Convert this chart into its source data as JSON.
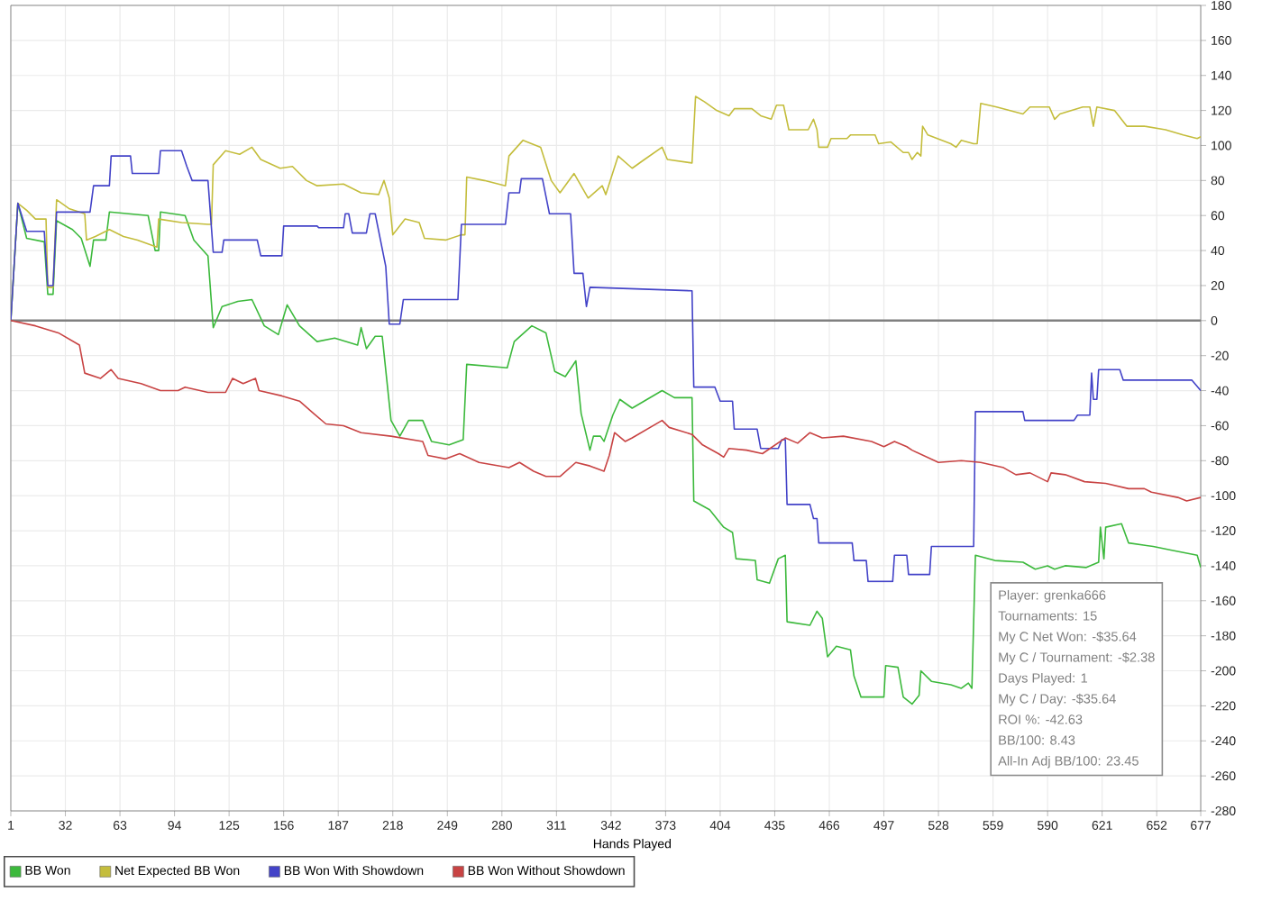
{
  "chart_data": {
    "type": "line",
    "xlabel": "Hands Played",
    "xlim": [
      1,
      677
    ],
    "ylim": [
      -280,
      180
    ],
    "xticks": [
      1,
      32,
      63,
      94,
      125,
      156,
      187,
      218,
      249,
      280,
      311,
      342,
      373,
      404,
      435,
      466,
      497,
      528,
      559,
      590,
      621,
      652,
      677
    ],
    "yticks": [
      -280,
      -260,
      -240,
      -220,
      -200,
      -180,
      -160,
      -140,
      -120,
      -100,
      -80,
      -60,
      -40,
      -20,
      0,
      20,
      40,
      60,
      80,
      100,
      120,
      140,
      160,
      180
    ],
    "grid": true,
    "legend": "bottom",
    "marker": "none",
    "line_style": "solid",
    "ref_lines": [
      {
        "axis": "y",
        "value": 0,
        "color": "#808080"
      }
    ],
    "annotations": [
      "Player: grenka666",
      "Tournaments: 15",
      "My C Net Won: -$35.64",
      "My C / Tournament: -$2.38",
      "Days Played: 1",
      "My C / Day: -$35.64",
      "ROI %: -42.63",
      "BB/100: 8.43",
      "All-In Adj BB/100: 23.45"
    ],
    "series": [
      {
        "name": "BB Won",
        "color": "#3cb93c",
        "x": [
          1,
          5,
          10,
          20,
          22,
          25,
          27,
          36,
          41,
          46,
          48,
          55,
          57,
          79,
          83,
          85,
          86,
          100,
          105,
          113,
          116,
          121,
          130,
          138,
          145,
          153,
          158,
          165,
          175,
          185,
          198,
          200,
          203,
          208,
          212,
          217,
          222,
          227,
          235,
          240,
          250,
          258,
          260,
          283,
          287,
          297,
          305,
          310,
          316,
          322,
          325,
          330,
          332,
          336,
          338,
          343,
          347,
          354,
          371,
          378,
          388,
          389,
          398,
          406,
          411,
          413,
          424,
          425,
          432,
          437,
          441,
          442,
          455,
          459,
          462,
          465,
          470,
          478,
          480,
          484,
          497,
          498,
          505,
          508,
          513,
          517,
          518,
          524,
          535,
          541,
          545,
          547,
          549,
          560,
          576,
          583,
          590,
          594,
          600,
          612,
          619,
          620,
          622,
          623,
          632,
          636,
          650,
          660,
          675,
          677
        ],
        "values": [
          0,
          67,
          47,
          45,
          15,
          15,
          57,
          52,
          47,
          31,
          46,
          46,
          62,
          60,
          40,
          40,
          62,
          60,
          46,
          37,
          -4,
          8,
          11,
          12,
          -3,
          -8,
          9,
          -3,
          -12,
          -10,
          -14,
          -4,
          -16,
          -9,
          -9,
          -57,
          -66,
          -57,
          -57,
          -69,
          -71,
          -68,
          -25,
          -27,
          -12,
          -3,
          -7,
          -29,
          -32,
          -23,
          -53,
          -74,
          -66,
          -66,
          -69,
          -54,
          -45,
          -50,
          -40,
          -44,
          -44,
          -103,
          -108,
          -118,
          -121,
          -136,
          -137,
          -148,
          -150,
          -136,
          -134,
          -172,
          -174,
          -166,
          -170,
          -192,
          -186,
          -188,
          -203,
          -215,
          -215,
          -197,
          -198,
          -215,
          -219,
          -214,
          -200,
          -206,
          -208,
          -210,
          -207,
          -210,
          -134,
          -137,
          -138,
          -142,
          -140,
          -142,
          -140,
          -141,
          -138,
          -118,
          -136,
          -118,
          -116,
          -127,
          -129,
          -131,
          -134,
          -141
        ]
      },
      {
        "name": "Net Expected BB Won",
        "color": "#c4bd3c",
        "x": [
          1,
          5,
          10,
          15,
          21,
          22,
          25,
          27,
          34,
          43,
          44,
          49,
          57,
          65,
          73,
          84,
          85,
          98,
          113,
          115,
          116,
          123,
          131,
          138,
          143,
          154,
          161,
          169,
          175,
          190,
          200,
          210,
          213,
          216,
          218,
          225,
          233,
          236,
          248,
          257,
          259,
          260,
          270,
          282,
          284,
          292,
          302,
          308,
          313,
          321,
          329,
          337,
          339,
          346,
          354,
          361,
          371,
          374,
          388,
          390,
          395,
          402,
          409,
          412,
          422,
          427,
          433,
          436,
          440,
          443,
          454,
          457,
          459,
          460,
          465,
          467,
          476,
          478,
          492,
          494,
          501,
          508,
          511,
          513,
          516,
          518,
          519,
          522,
          535,
          538,
          541,
          548,
          550,
          552,
          561,
          576,
          580,
          591,
          594,
          597,
          610,
          614,
          616,
          618,
          628,
          635,
          645,
          657,
          667,
          675,
          677
        ],
        "values": [
          0,
          67,
          63,
          58,
          58,
          19,
          19,
          69,
          64,
          61,
          46,
          48,
          52,
          48,
          46,
          42,
          58,
          56,
          55,
          55,
          89,
          97,
          95,
          99,
          92,
          87,
          88,
          80,
          77,
          78,
          73,
          72,
          80,
          70,
          49,
          58,
          56,
          47,
          46,
          49,
          49,
          82,
          80,
          77,
          94,
          103,
          99,
          80,
          73,
          84,
          70,
          77,
          72,
          94,
          87,
          92,
          99,
          92,
          90,
          128,
          125,
          120,
          117,
          121,
          121,
          117,
          115,
          123,
          123,
          109,
          109,
          115,
          109,
          99,
          99,
          104,
          104,
          106,
          106,
          101,
          102,
          96,
          96,
          92,
          96,
          94,
          111,
          106,
          101,
          99,
          103,
          101,
          101,
          124,
          122,
          118,
          122,
          122,
          115,
          118,
          122,
          122,
          111,
          122,
          120,
          111,
          111,
          109,
          106,
          104,
          105
        ]
      },
      {
        "name": "BB Won With Showdown",
        "color": "#4343c8",
        "x": [
          1,
          5,
          10,
          20,
          22,
          25,
          27,
          46,
          48,
          57,
          58,
          69,
          70,
          85,
          86,
          98,
          101,
          104,
          113,
          116,
          121,
          122,
          141,
          143,
          155,
          156,
          175,
          176,
          190,
          191,
          193,
          195,
          203,
          205,
          208,
          214,
          216,
          222,
          224,
          255,
          257,
          282,
          284,
          290,
          291,
          303,
          307,
          319,
          321,
          326,
          328,
          330,
          388,
          389,
          401,
          404,
          411,
          412,
          425,
          427,
          437,
          439,
          441,
          442,
          455,
          457,
          459,
          460,
          479,
          480,
          487,
          488,
          502,
          503,
          510,
          511,
          523,
          524,
          548,
          549,
          576,
          577,
          605,
          607,
          614,
          615,
          616,
          618,
          619,
          631,
          633,
          672,
          677
        ],
        "values": [
          0,
          67,
          51,
          51,
          20,
          20,
          62,
          62,
          77,
          77,
          94,
          94,
          84,
          84,
          97,
          97,
          88,
          80,
          80,
          39,
          39,
          46,
          46,
          37,
          37,
          54,
          54,
          53,
          53,
          61,
          61,
          50,
          50,
          61,
          61,
          31,
          -2,
          -2,
          12,
          12,
          55,
          55,
          73,
          73,
          81,
          81,
          61,
          61,
          27,
          27,
          8,
          19,
          17,
          -38,
          -38,
          -46,
          -46,
          -62,
          -62,
          -73,
          -73,
          -68,
          -68,
          -105,
          -105,
          -113,
          -113,
          -127,
          -127,
          -137,
          -137,
          -149,
          -149,
          -134,
          -134,
          -145,
          -145,
          -129,
          -129,
          -52,
          -52,
          -57,
          -57,
          -54,
          -54,
          -30,
          -45,
          -45,
          -28,
          -28,
          -34,
          -34,
          -40
        ]
      },
      {
        "name": "BB Won Without Showdown",
        "color": "#c84343",
        "x": [
          1,
          15,
          28,
          40,
          43,
          52,
          58,
          62,
          75,
          86,
          96,
          100,
          113,
          123,
          127,
          133,
          140,
          142,
          155,
          165,
          173,
          180,
          190,
          200,
          217,
          235,
          238,
          248,
          256,
          267,
          284,
          290,
          298,
          305,
          313,
          322,
          330,
          338,
          341,
          344,
          350,
          354,
          371,
          375,
          388,
          394,
          403,
          406,
          409,
          419,
          428,
          441,
          448,
          455,
          462,
          474,
          490,
          497,
          503,
          510,
          513,
          528,
          541,
          552,
          565,
          572,
          580,
          590,
          592,
          600,
          611,
          623,
          636,
          645,
          649,
          664,
          669,
          677
        ],
        "values": [
          0,
          -3,
          -7,
          -14,
          -30,
          -33,
          -28,
          -33,
          -36,
          -40,
          -40,
          -38,
          -41,
          -41,
          -33,
          -36,
          -33,
          -40,
          -43,
          -46,
          -53,
          -59,
          -60,
          -64,
          -66,
          -69,
          -77,
          -79,
          -76,
          -81,
          -84,
          -81,
          -86,
          -89,
          -89,
          -81,
          -83,
          -86,
          -77,
          -64,
          -69,
          -67,
          -57,
          -61,
          -65,
          -71,
          -76,
          -78,
          -73,
          -74,
          -76,
          -67,
          -70,
          -64,
          -67,
          -66,
          -69,
          -72,
          -69,
          -72,
          -74,
          -81,
          -80,
          -81,
          -84,
          -88,
          -87,
          -92,
          -87,
          -88,
          -92,
          -93,
          -96,
          -96,
          -98,
          -101,
          -103,
          -101
        ]
      }
    ]
  }
}
